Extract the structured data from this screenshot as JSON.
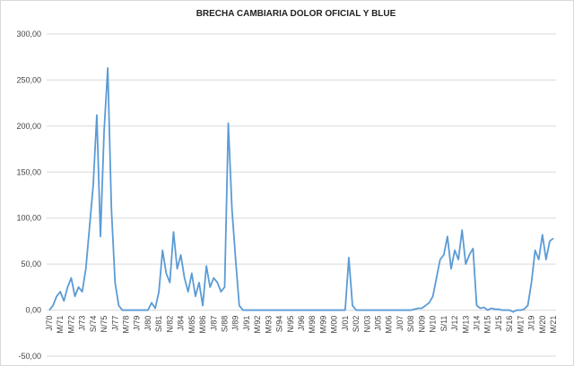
{
  "chart_data": {
    "type": "line",
    "title": "BRECHA CAMBIARIA DOLOR OFICIAL Y BLUE",
    "categories": [
      "J/70",
      null,
      null,
      "M/71",
      null,
      null,
      "M/72",
      null,
      null,
      "J/73",
      null,
      null,
      "S/74",
      null,
      null,
      "N/75",
      null,
      null,
      "J/77",
      null,
      null,
      "M/78",
      null,
      null,
      "J/79",
      null,
      null,
      "J/80",
      null,
      null,
      "S/81",
      null,
      null,
      "N/82",
      null,
      null,
      "J/84",
      null,
      null,
      "M/85",
      null,
      null,
      "M/86",
      null,
      null,
      "J/87",
      null,
      null,
      "S/88",
      null,
      null,
      "J/89",
      null,
      null,
      "J/91",
      null,
      null,
      "M/92",
      null,
      null,
      "M/93",
      null,
      null,
      "S/94",
      null,
      null,
      "N/95",
      null,
      null,
      "J/96",
      null,
      null,
      "M/98",
      null,
      null,
      "M/99",
      null,
      null,
      "M/00",
      null,
      null,
      "J/01",
      null,
      null,
      "S/02",
      null,
      null,
      "N/03",
      null,
      null,
      "J/05",
      null,
      null,
      "M/06",
      null,
      null,
      "J/07",
      null,
      null,
      "S/08",
      null,
      null,
      "N/09",
      null,
      null,
      "N/10",
      null,
      null,
      "S/11",
      null,
      null,
      "J/12",
      null,
      null,
      "M/13",
      null,
      null,
      "J/14",
      null,
      null,
      "M/15",
      null,
      null,
      "J/15",
      null,
      null,
      "S/16",
      null,
      null,
      "M/17",
      null,
      null,
      "J/19",
      null,
      null,
      "M/20",
      null,
      null,
      "M/21"
    ],
    "values": [
      0,
      5,
      15,
      20,
      10,
      25,
      35,
      15,
      25,
      20,
      45,
      90,
      135,
      212,
      80,
      195,
      263,
      110,
      30,
      5,
      0,
      0,
      0,
      0,
      0,
      0,
      0,
      0,
      8,
      2,
      20,
      65,
      40,
      30,
      85,
      45,
      60,
      35,
      20,
      40,
      15,
      30,
      5,
      48,
      25,
      35,
      30,
      20,
      25,
      203,
      110,
      55,
      5,
      0,
      0,
      0,
      0,
      0,
      0,
      0,
      0,
      0,
      0,
      0,
      0,
      0,
      0,
      0,
      0,
      0,
      0,
      0,
      0,
      0,
      0,
      0,
      0,
      0,
      0,
      0,
      0,
      0,
      57,
      5,
      0,
      0,
      0,
      0,
      0,
      0,
      0,
      0,
      0,
      0,
      0,
      0,
      0,
      0,
      0,
      0,
      1,
      2,
      2,
      5,
      8,
      15,
      35,
      55,
      60,
      80,
      45,
      65,
      55,
      87,
      50,
      60,
      67,
      5,
      2,
      3,
      0,
      2,
      1,
      1,
      0,
      0,
      0,
      -2,
      0,
      0,
      1,
      5,
      30,
      65,
      55,
      82,
      55,
      75,
      78
    ],
    "color": "#5b9bd5",
    "ylim": [
      -50,
      300
    ],
    "yticks": [
      {
        "value": -50,
        "label": "-50,00"
      },
      {
        "value": 0,
        "label": "0,00"
      },
      {
        "value": 50,
        "label": "50,00"
      },
      {
        "value": 100,
        "label": "100,00"
      },
      {
        "value": 150,
        "label": "150,00"
      },
      {
        "value": 200,
        "label": "200,00"
      },
      {
        "value": 250,
        "label": "250,00"
      },
      {
        "value": 300,
        "label": "300,00"
      }
    ],
    "grid": true
  }
}
